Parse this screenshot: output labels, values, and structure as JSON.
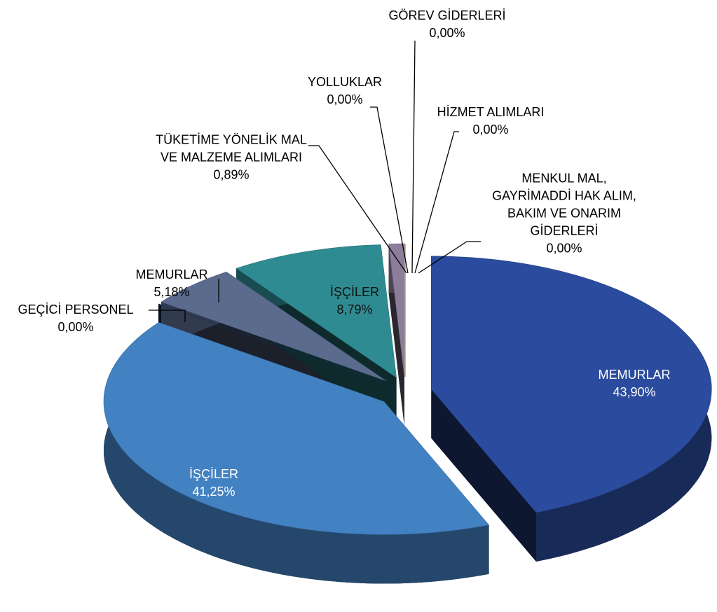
{
  "chart_data": {
    "type": "pie",
    "categories": [
      "MEMURLAR",
      "İŞÇİLER",
      "GEÇİCİ PERSONEL",
      "MEMURLAR",
      "İŞÇİLER",
      "TÜKETİME YÖNELİK MAL VE MALZEME ALIMLARI",
      "YOLLUKLAR",
      "GÖREV GİDERLERİ",
      "HİZMET ALIMLARI",
      "MENKUL MAL, GAYRİMADDİ HAK ALIM, BAKIM VE ONARIM GİDERLERİ"
    ],
    "values": [
      43.9,
      41.25,
      0.0,
      5.18,
      8.79,
      0.89,
      0.0,
      0.0,
      0.0,
      0.0
    ],
    "value_labels": [
      "43,90%",
      "41,25%",
      "0,00%",
      "5,18%",
      "8,79%",
      "0,89%",
      "0,00%",
      "0,00%",
      "0,00%",
      "0,00%"
    ],
    "colors": [
      "#2b4c9e",
      "#4281c2",
      "#123a6e",
      "#5b6b8e",
      "#2e8b91",
      "#8c7d9c",
      "#7a9a3a",
      "#c05050",
      "#5a9ad0",
      "#d08a30"
    ]
  }
}
